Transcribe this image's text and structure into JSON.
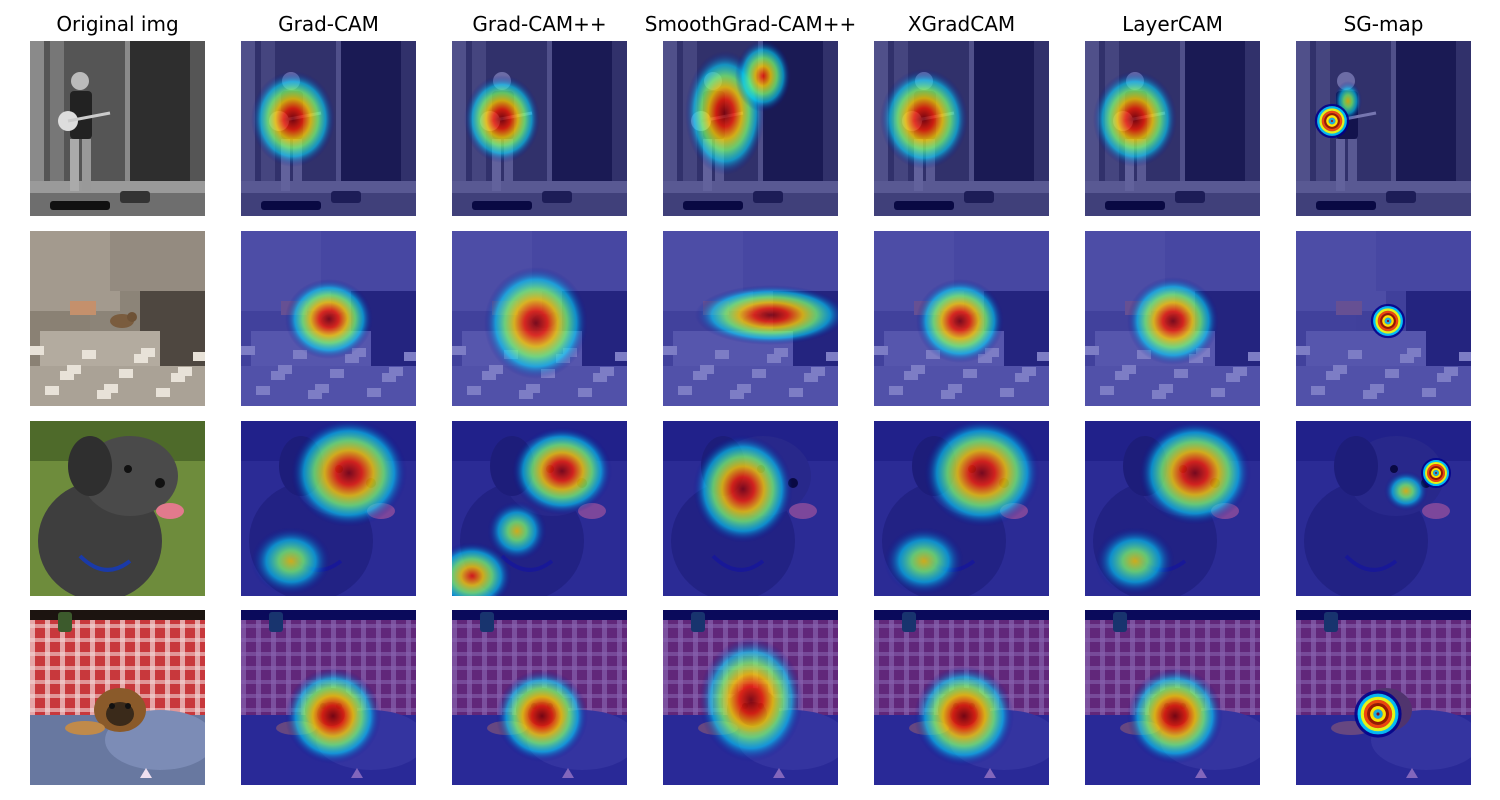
{
  "figure": {
    "columns": [
      {
        "key": "original",
        "title": "Original img"
      },
      {
        "key": "gradcam",
        "title": "Grad-CAM"
      },
      {
        "key": "gradcampp",
        "title": "Grad-CAM++"
      },
      {
        "key": "smoothgradcampp",
        "title": "SmoothGrad-CAM++"
      },
      {
        "key": "xgradcam",
        "title": "XGradCAM"
      },
      {
        "key": "layercam",
        "title": "LayerCAM"
      },
      {
        "key": "sgmap",
        "title": "SG-map"
      }
    ],
    "rows": [
      {
        "key": "musician",
        "subject": "banjo-player"
      },
      {
        "key": "rock-squirrel",
        "subject": "squirrel"
      },
      {
        "key": "terrier",
        "subject": "dog"
      },
      {
        "key": "puppy-table",
        "subject": "puppy"
      }
    ],
    "colors": {
      "heat_low": "#00008b",
      "heat_mid": "#00ffff",
      "heat_high": "#ffff00",
      "heat_peak": "#b30000"
    }
  }
}
